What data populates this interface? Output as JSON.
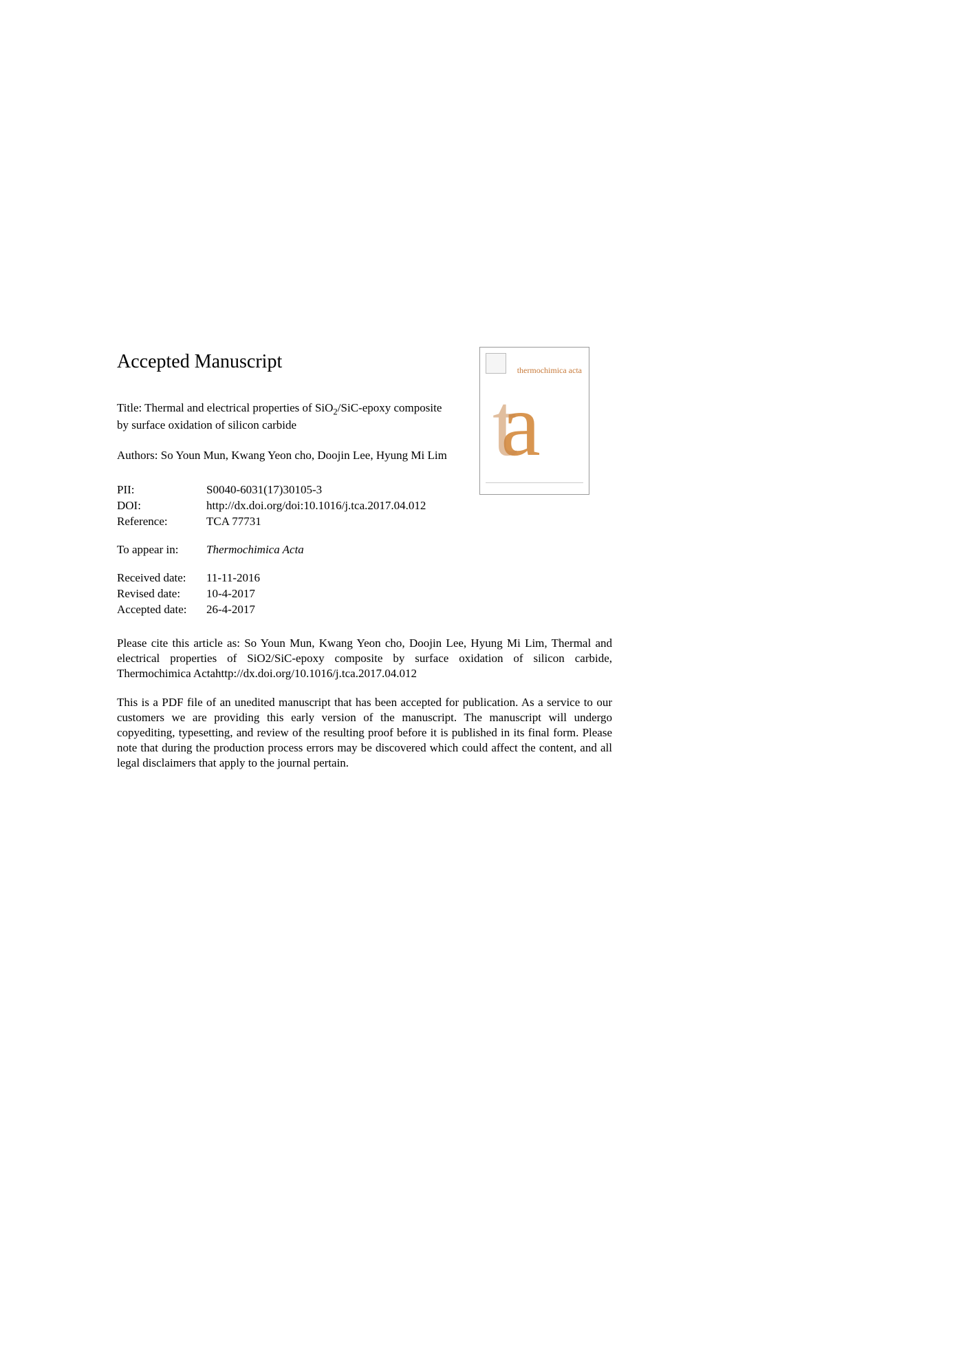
{
  "heading": "Accepted Manuscript",
  "title_prefix": "Title: Thermal and electrical properties of SiO",
  "title_sub": "2",
  "title_suffix": "/SiC-epoxy composite by surface oxidation of silicon carbide",
  "authors": "Authors: So Youn Mun, Kwang Yeon cho, Doojin Lee, Hyung Mi Lim",
  "meta": {
    "pii_label": "PII:",
    "pii_value": "S0040-6031(17)30105-3",
    "doi_label": "DOI:",
    "doi_value": "http://dx.doi.org/doi:10.1016/j.tca.2017.04.012",
    "reference_label": "Reference:",
    "reference_value": "TCA 77731",
    "appear_label": "To appear in:",
    "appear_value": "Thermochimica Acta",
    "received_label": "Received date:",
    "received_value": "11-11-2016",
    "revised_label": "Revised date:",
    "revised_value": "10-4-2017",
    "accepted_label": "Accepted date:",
    "accepted_value": "26-4-2017"
  },
  "citation": "Please cite this article as: So Youn Mun, Kwang Yeon cho, Doojin Lee, Hyung Mi Lim, Thermal and electrical properties of SiO2/SiC-epoxy composite by surface oxidation of silicon carbide, Thermochimica Actahttp://dx.doi.org/10.1016/j.tca.2017.04.012",
  "disclaimer": "This is a PDF file of an unedited manuscript that has been accepted for publication. As a service to our customers we are providing this early version of the manuscript. The manuscript will undergo copyediting, typesetting, and review of the resulting proof before it is published in its final form. Please note that during the production process errors may be discovered which could affect the content, and all legal disclaimers that apply to the journal pertain.",
  "cover": {
    "journal_name": "thermochimica acta",
    "logo_t": "t",
    "logo_a": "a"
  }
}
